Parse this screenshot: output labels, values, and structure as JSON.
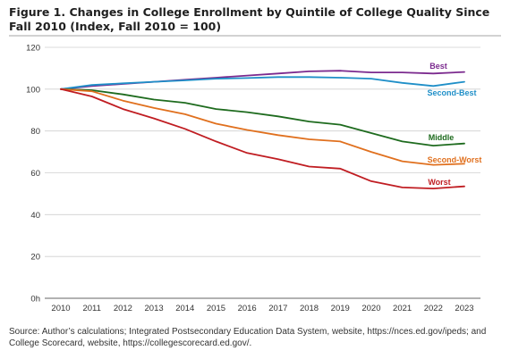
{
  "title": "Figure 1. Changes in College Enrollment by Quintile of College Quality Since Fall 2010 (Index, Fall 2010 = 100)",
  "source": "Source: Author’s calculations; Integrated Postsecondary Education Data System, website, https://nces.ed.gov/ipeds; and College Scorecard, website, https://collegescorecard.ed.gov/.",
  "chart_data": {
    "type": "line",
    "x": [
      2010,
      2011,
      2012,
      2013,
      2014,
      2015,
      2016,
      2017,
      2018,
      2019,
      2020,
      2021,
      2022,
      2023
    ],
    "ylim": [
      0,
      120
    ],
    "yticks": [
      0,
      20,
      40,
      60,
      80,
      100,
      120
    ],
    "ytick_labels": [
      "0h",
      "20",
      "40",
      "60",
      "80",
      "100",
      "120"
    ],
    "grid": "horizontal",
    "series": [
      {
        "name": "Best",
        "color": "#7b2a8e",
        "values": [
          100,
          101.5,
          102.5,
          103.5,
          104.5,
          105.5,
          106.5,
          107.5,
          108.5,
          108.8,
          108,
          108,
          107.5,
          108.2
        ]
      },
      {
        "name": "Second-Best",
        "color": "#1f8fc8",
        "values": [
          100,
          102,
          102.8,
          103.5,
          104.2,
          105,
          105.3,
          105.8,
          105.8,
          105.5,
          105,
          103,
          101.5,
          103.5
        ]
      },
      {
        "name": "Middle",
        "color": "#1e6b1e",
        "values": [
          100,
          99.5,
          97.5,
          95,
          93.5,
          90.5,
          89,
          87,
          84.5,
          83,
          79,
          75,
          73,
          74
        ]
      },
      {
        "name": "Second-Worst",
        "color": "#e0701e",
        "values": [
          100,
          99,
          94.5,
          91,
          88,
          83.5,
          80.5,
          78,
          76,
          75,
          70,
          65.5,
          63.8,
          64.3
        ]
      },
      {
        "name": "Worst",
        "color": "#c01d22",
        "values": [
          100,
          96.5,
          90.5,
          86,
          81,
          75,
          69.5,
          66.5,
          63,
          62,
          56,
          53,
          52.5,
          53.5
        ]
      }
    ]
  }
}
